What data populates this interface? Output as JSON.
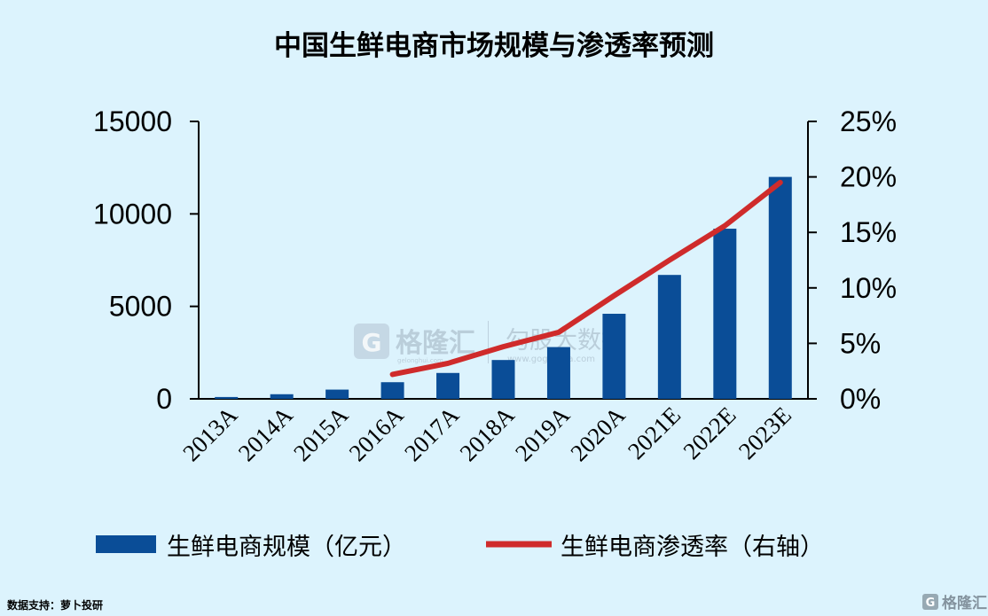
{
  "chart_data": {
    "type": "bar",
    "title": "中国生鲜电商市场规模与渗透率预测",
    "categories": [
      "2013A",
      "2014A",
      "2015A",
      "2016A",
      "2017A",
      "2018A",
      "2019A",
      "2020A",
      "2021E",
      "2022E",
      "2023E"
    ],
    "series": [
      {
        "name": "生鲜电商规模（亿元）",
        "type": "bar",
        "axis": "left",
        "color": "#0a4d97",
        "values": [
          100,
          250,
          500,
          900,
          1400,
          2100,
          2800,
          4600,
          6700,
          9200,
          12000
        ]
      },
      {
        "name": "生鲜电商渗透率（右轴）",
        "type": "line",
        "axis": "right",
        "color": "#cf2b2b",
        "values": [
          null,
          null,
          null,
          2.2,
          3.2,
          4.7,
          6.0,
          9.3,
          12.5,
          15.6,
          19.5
        ]
      }
    ],
    "y_left": {
      "min": 0,
      "max": 15000,
      "ticks": [
        "0",
        "5000",
        "10000",
        "15000"
      ],
      "tick_values": [
        0,
        5000,
        10000,
        15000
      ]
    },
    "y_right": {
      "min": 0,
      "max": 25,
      "ticks": [
        "0%",
        "5%",
        "10%",
        "15%",
        "20%",
        "25%"
      ],
      "tick_values": [
        0,
        5,
        10,
        15,
        20,
        25
      ]
    },
    "grid": false,
    "legend_position": "bottom"
  },
  "source": "数据支持：萝卜投研",
  "watermark": {
    "brand": "格隆汇",
    "brand_sub": "gelonghui.com",
    "partner": "勾股大数据",
    "partner_sub": "www.gogudata.com",
    "corner": "格隆汇"
  },
  "colors": {
    "background": "#dcf3fd",
    "bar": "#0a4d97",
    "line": "#cf2b2b"
  }
}
